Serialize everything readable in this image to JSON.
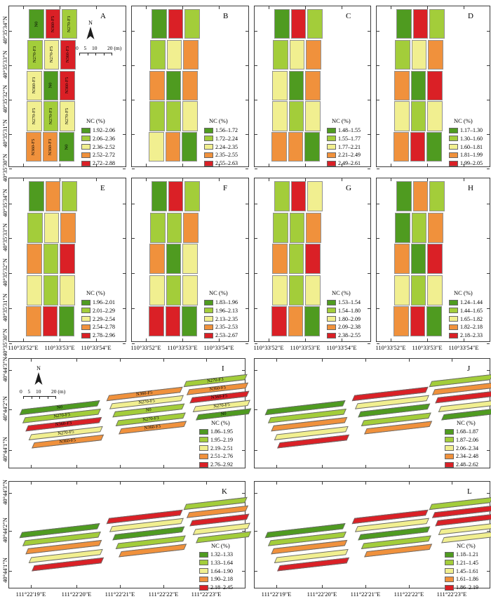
{
  "legend_title": "NC (%)",
  "north_label": "N",
  "scalebar": {
    "labels": [
      "0",
      "5",
      "10",
      "20 (m)"
    ]
  },
  "colors": {
    "classes": [
      "#4f9b20",
      "#a3cd3a",
      "#f1ef90",
      "#f0913c",
      "#da2026"
    ],
    "frame": "#3c3c3c"
  },
  "axes": {
    "small_y": [
      "40°35'34\"N",
      "40°35'33\"N",
      "40°35'32\"N",
      "40°35'31\"N",
      "40°35'30\"N"
    ],
    "small_x": [
      "110°33'52\"E",
      "110°33'53\"E",
      "110°33'54\"E"
    ],
    "wide_y": [
      "40°44'3\"N",
      "40°44'2\"N",
      "40°44'1\"N"
    ],
    "wide_x": [
      "111°22'19\"E",
      "111°22'20\"E",
      "111°22'21\"E",
      "111°22'22\"E",
      "111°22'23\"E"
    ]
  },
  "panels": [
    {
      "id": "A",
      "legend": [
        "1.92–2.06",
        "2.06–2.36",
        "2.36–2.52",
        "2.52–2.72",
        "2.72–2.88"
      ],
      "grid": [
        [
          1,
          5,
          2
        ],
        [
          2,
          3,
          5
        ],
        [
          3,
          1,
          5
        ],
        [
          3,
          2,
          3
        ],
        [
          4,
          4,
          1
        ]
      ],
      "labels": [
        [
          "N0",
          "N360-F5",
          "N270-F3"
        ],
        [
          "N270-F3",
          "N270-F5",
          "N360-F3"
        ],
        [
          "N360-F3",
          "N0",
          "N360-F5"
        ],
        [
          "N270-F5",
          "N270-F3",
          "N270-F5"
        ],
        [
          "N360-F5",
          "N360-F3",
          "N0"
        ]
      ]
    },
    {
      "id": "B",
      "legend": [
        "1.56–1.72",
        "1.72–2.24",
        "2.24–2.35",
        "2.35–2.55",
        "2.55–2.63"
      ],
      "grid": [
        [
          1,
          5,
          2
        ],
        [
          2,
          3,
          4
        ],
        [
          4,
          1,
          4
        ],
        [
          2,
          2,
          3
        ],
        [
          3,
          4,
          1
        ]
      ]
    },
    {
      "id": "C",
      "legend": [
        "1.48–1.55",
        "1.55–1.77",
        "1.77–2.21",
        "2.21–2.49",
        "2.49–2.61"
      ],
      "grid": [
        [
          1,
          5,
          2
        ],
        [
          2,
          3,
          4
        ],
        [
          3,
          1,
          4
        ],
        [
          3,
          2,
          3
        ],
        [
          4,
          4,
          1
        ]
      ]
    },
    {
      "id": "D",
      "legend": [
        "1.17–1.30",
        "1.30–1.60",
        "1.60–1.81",
        "1.81–1.99",
        "1.99–2.05"
      ],
      "grid": [
        [
          1,
          5,
          2
        ],
        [
          2,
          3,
          4
        ],
        [
          4,
          1,
          5
        ],
        [
          3,
          2,
          3
        ],
        [
          4,
          5,
          1
        ]
      ]
    },
    {
      "id": "E",
      "legend": [
        "1.96–2.01",
        "2.01–2.29",
        "2.29–2.54",
        "2.54–2.78",
        "2.78–2.96"
      ],
      "grid": [
        [
          1,
          4,
          2
        ],
        [
          2,
          3,
          4
        ],
        [
          4,
          2,
          5
        ],
        [
          3,
          2,
          3
        ],
        [
          4,
          5,
          1
        ]
      ]
    },
    {
      "id": "F",
      "legend": [
        "1.83–1.96",
        "1.96–2.13",
        "2.13–2.35",
        "2.35–2.53",
        "2.53–2.67"
      ],
      "grid": [
        [
          1,
          5,
          2
        ],
        [
          2,
          2,
          4
        ],
        [
          4,
          1,
          3
        ],
        [
          3,
          2,
          3
        ],
        [
          5,
          5,
          1
        ]
      ]
    },
    {
      "id": "G",
      "legend": [
        "1.53–1.54",
        "1.54–1.80",
        "1.80–2.09",
        "2.09–2.38",
        "2.38–2.55"
      ],
      "grid": [
        [
          2,
          5,
          3
        ],
        [
          2,
          2,
          4
        ],
        [
          4,
          2,
          5
        ],
        [
          3,
          2,
          3
        ],
        [
          5,
          4,
          1
        ]
      ]
    },
    {
      "id": "H",
      "legend": [
        "1.24–1.44",
        "1.44–1.65",
        "1.65–1.82",
        "1.82–2.18",
        "2.18–2.33"
      ],
      "grid": [
        [
          1,
          4,
          2
        ],
        [
          1,
          2,
          4
        ],
        [
          4,
          1,
          5
        ],
        [
          3,
          2,
          3
        ],
        [
          4,
          5,
          1
        ]
      ]
    },
    {
      "id": "I",
      "legend": [
        "1.86–1.95",
        "1.95–2.19",
        "2.19–2.51",
        "2.51–2.76",
        "2.76–2.92"
      ],
      "groups": [
        [
          1,
          2,
          5,
          3,
          4
        ],
        [
          4,
          3,
          2,
          2,
          4
        ],
        [
          2,
          4,
          5,
          3,
          1
        ]
      ],
      "group_labels": [
        [
          "N0",
          "N270-F3",
          "N360-F3",
          "N270-F5",
          "N360-F5"
        ],
        [
          "N360-F5",
          "N270-F5",
          "N0",
          "N270-F3",
          "N360-F3"
        ],
        [
          "N270-F3",
          "N360-F3",
          "N360-F5",
          "N270-F5",
          "N0"
        ]
      ]
    },
    {
      "id": "J",
      "legend": [
        "1.68–1.87",
        "1.87–2.06",
        "2.06–2.34",
        "2.34–2.48",
        "2.48–2.62"
      ],
      "groups": [
        [
          1,
          2,
          4,
          3,
          5
        ],
        [
          5,
          3,
          1,
          2,
          4
        ],
        [
          2,
          4,
          5,
          3,
          1
        ]
      ]
    },
    {
      "id": "K",
      "legend": [
        "1.32–1.33",
        "1.33–1.64",
        "1.64–1.90",
        "1.90–2.18",
        "2.18–2.45"
      ],
      "groups": [
        [
          1,
          2,
          4,
          3,
          5
        ],
        [
          5,
          3,
          1,
          2,
          4
        ],
        [
          2,
          4,
          5,
          3,
          2
        ]
      ]
    },
    {
      "id": "L",
      "legend": [
        "1.18–1.21",
        "1.21–1.45",
        "1.45–1.61",
        "1.61–1.86",
        "1.86–2.19"
      ],
      "groups": [
        [
          1,
          2,
          4,
          3,
          5
        ],
        [
          5,
          3,
          1,
          2,
          4
        ],
        [
          2,
          5,
          5,
          3,
          3
        ]
      ]
    }
  ]
}
